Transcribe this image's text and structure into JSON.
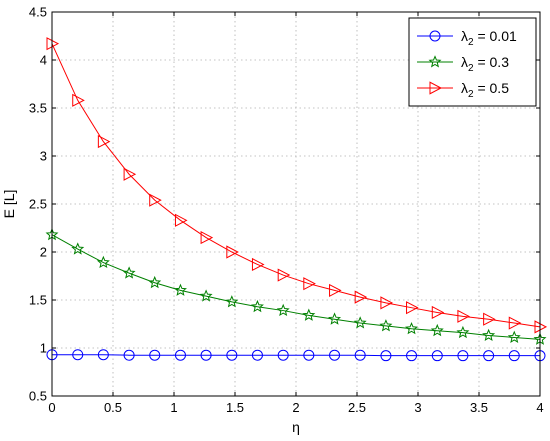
{
  "chart_data": {
    "type": "line",
    "xlabel": "η",
    "ylabel": "E [L]",
    "xlim": [
      0,
      4
    ],
    "ylim": [
      0.5,
      4.5
    ],
    "xticks": [
      "0",
      "0.5",
      "1",
      "1.5",
      "2",
      "2.5",
      "3",
      "3.5",
      "4"
    ],
    "yticks": [
      "0.5",
      "1",
      "1.5",
      "2",
      "2.5",
      "3",
      "3.5",
      "4",
      "4.5"
    ],
    "grid": true,
    "legend_position": "top-right",
    "x": [
      0,
      0.211,
      0.421,
      0.632,
      0.842,
      1.053,
      1.263,
      1.474,
      1.684,
      1.895,
      2.105,
      2.316,
      2.526,
      2.737,
      2.947,
      3.158,
      3.368,
      3.579,
      3.789,
      4.0
    ],
    "series": [
      {
        "name_main": "λ",
        "name_sub": "2",
        "name_rest": " = 0.01",
        "color": "#0000ff",
        "marker": "circle",
        "values": [
          0.93,
          0.93,
          0.93,
          0.925,
          0.925,
          0.925,
          0.925,
          0.925,
          0.925,
          0.925,
          0.925,
          0.925,
          0.925,
          0.92,
          0.92,
          0.92,
          0.92,
          0.92,
          0.92,
          0.92
        ]
      },
      {
        "name_main": "λ",
        "name_sub": "2",
        "name_rest": " = 0.3",
        "color": "#008000",
        "marker": "star",
        "values": [
          2.18,
          2.03,
          1.89,
          1.78,
          1.68,
          1.6,
          1.54,
          1.48,
          1.43,
          1.39,
          1.34,
          1.3,
          1.26,
          1.23,
          1.2,
          1.18,
          1.16,
          1.13,
          1.11,
          1.09
        ]
      },
      {
        "name_main": "λ",
        "name_sub": "2",
        "name_rest": " = 0.5",
        "color": "#ff0000",
        "marker": "triangle-right",
        "values": [
          4.17,
          3.58,
          3.15,
          2.81,
          2.54,
          2.33,
          2.15,
          2.0,
          1.87,
          1.76,
          1.67,
          1.6,
          1.53,
          1.47,
          1.42,
          1.37,
          1.33,
          1.3,
          1.26,
          1.22
        ]
      }
    ]
  }
}
